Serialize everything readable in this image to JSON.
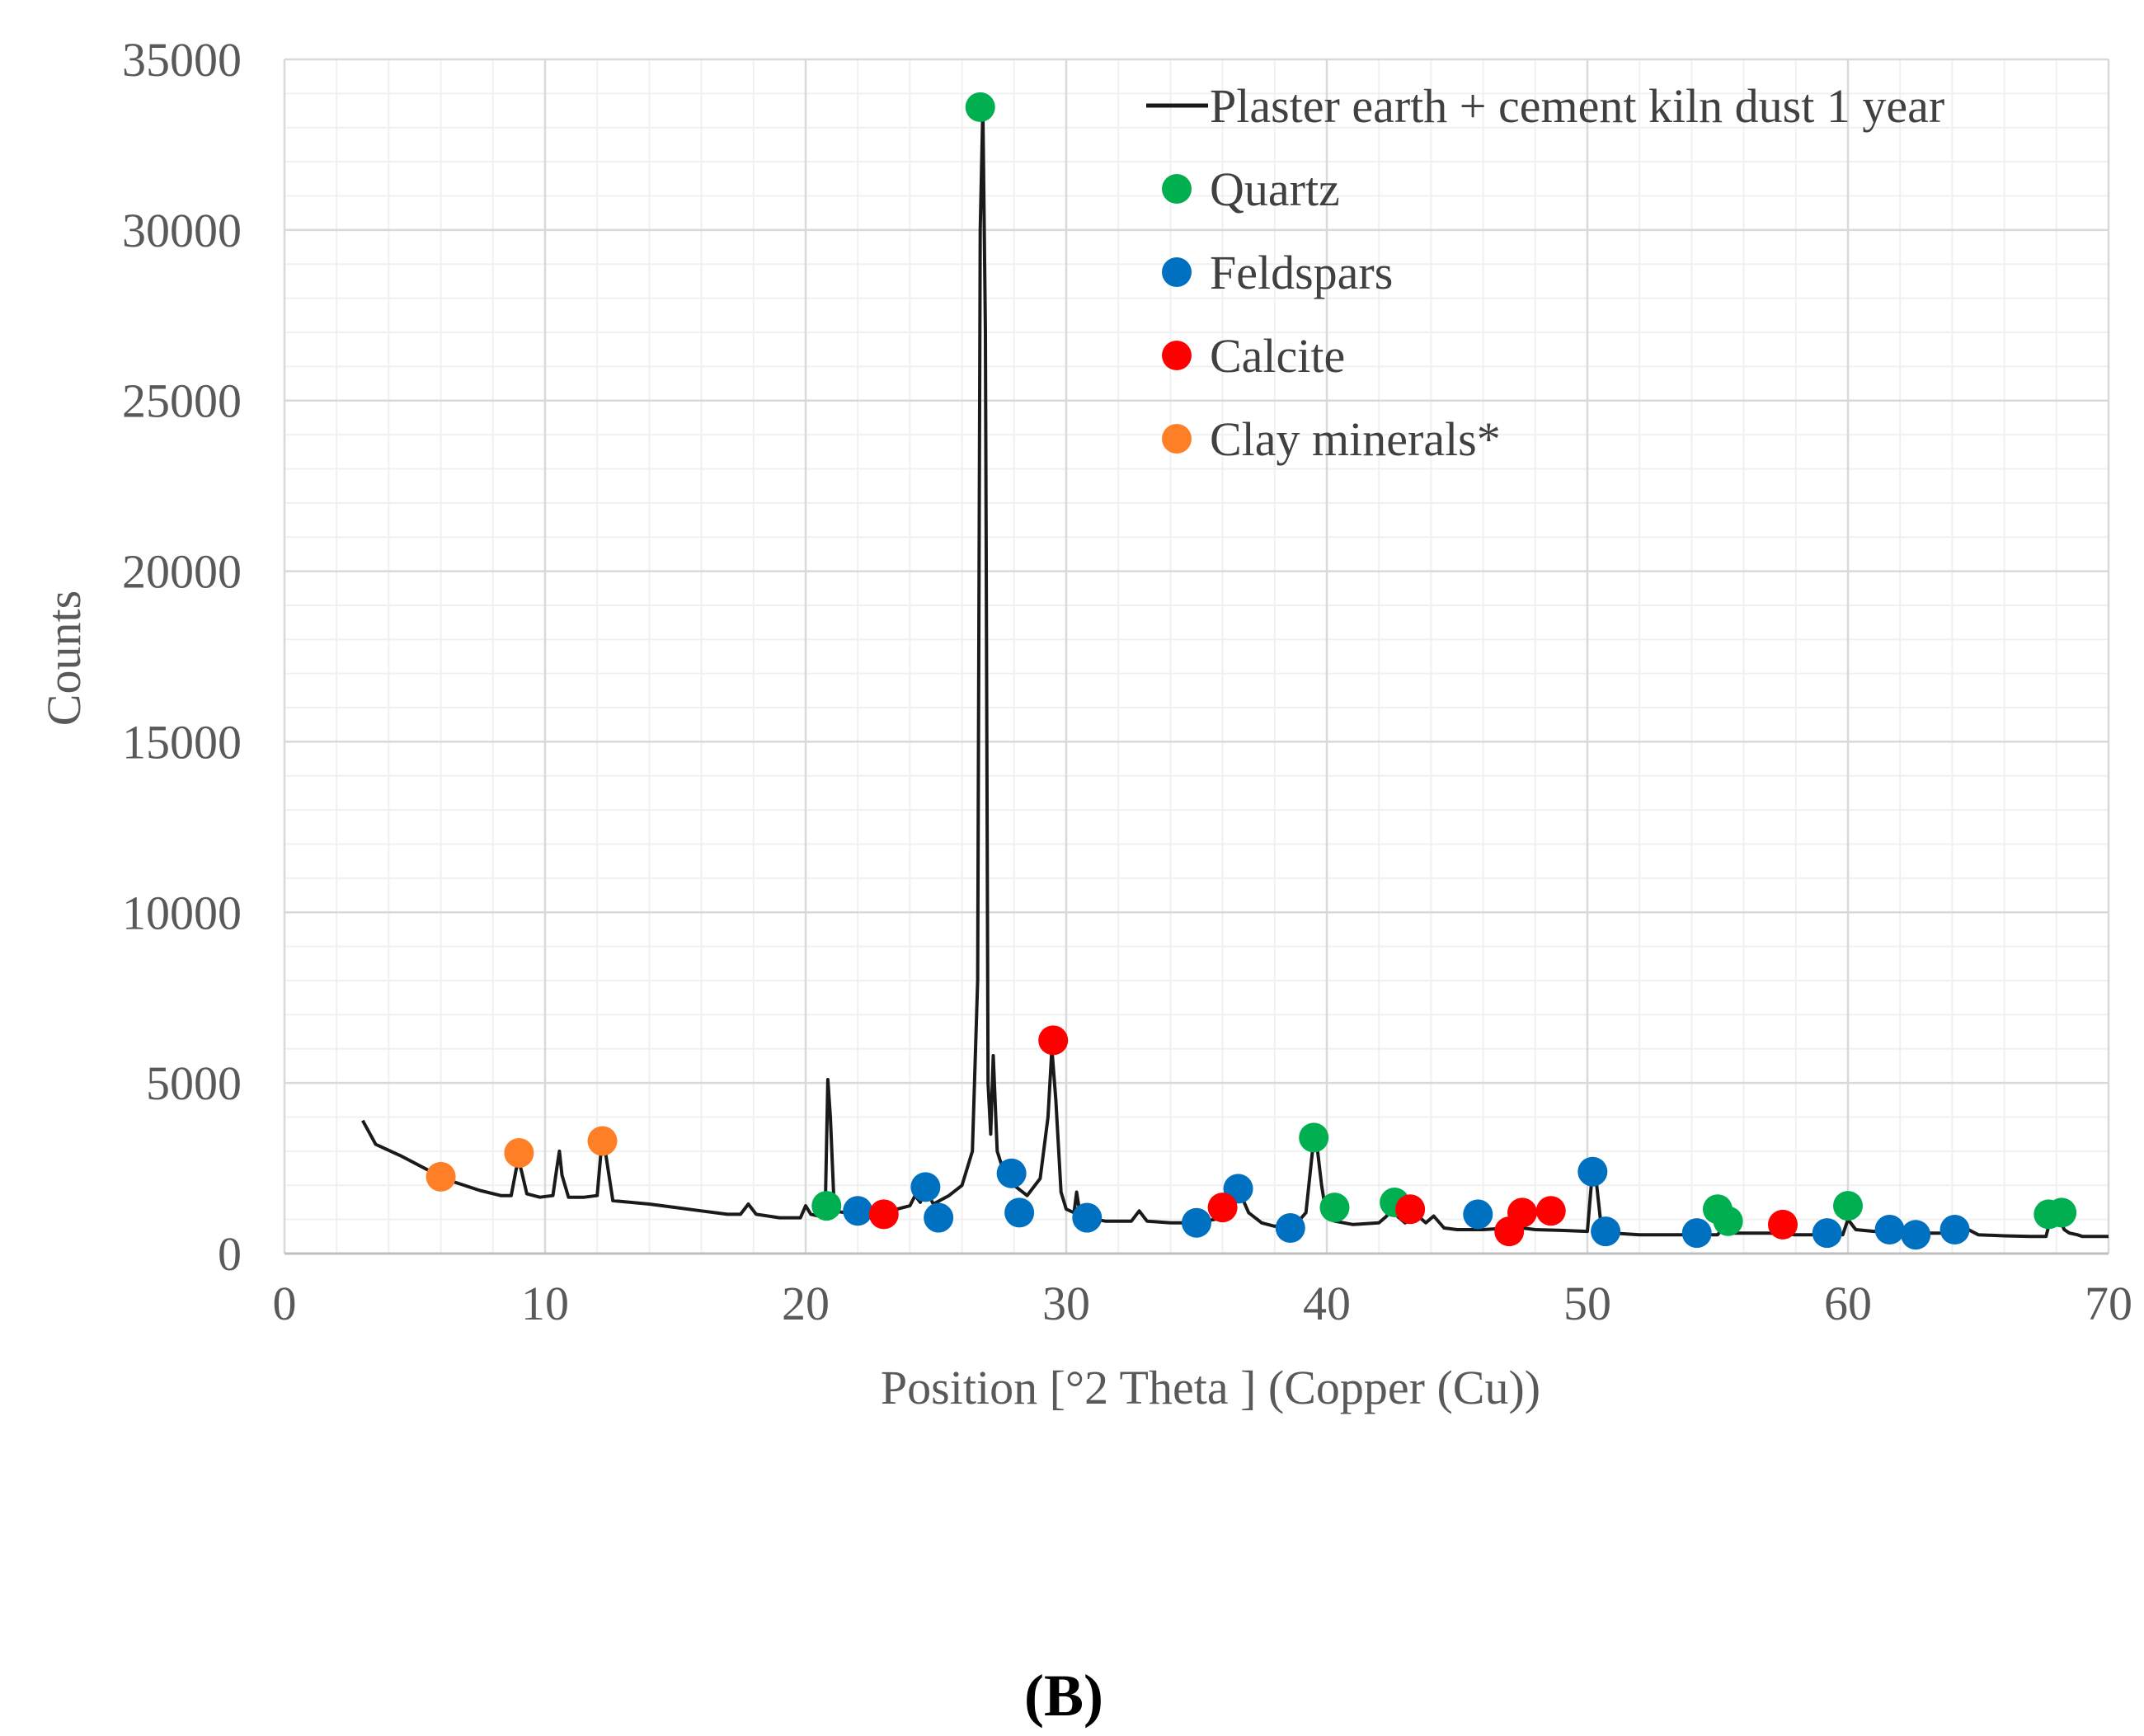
{
  "chart_data": {
    "type": "line",
    "title": "",
    "xlabel": "Position [°2 Theta ] (Copper (Cu))",
    "ylabel": "Counts",
    "xlim": [
      0,
      70
    ],
    "ylim": [
      0,
      35000
    ],
    "x_ticks": [
      0,
      10,
      20,
      30,
      40,
      50,
      60,
      70
    ],
    "x_tick_labels": [
      "0",
      "10",
      "20",
      "30",
      "40",
      "50",
      "60",
      "70"
    ],
    "y_ticks": [
      0,
      5000,
      10000,
      15000,
      20000,
      25000,
      30000,
      35000
    ],
    "y_tick_labels": [
      "0",
      "5000",
      "10000",
      "15000",
      "20000",
      "25000",
      "30000",
      "35000"
    ],
    "grid": true,
    "legend_position": "top-right",
    "caption": "(B)",
    "series": [
      {
        "name": "Plaster earth + cement kiln dust 1 year",
        "kind": "line",
        "color": "#1a1a1a",
        "x": [
          3.0,
          3.5,
          4.5,
          5.5,
          6.5,
          7.5,
          8.3,
          8.7,
          8.9,
          9.0,
          9.1,
          9.3,
          9.8,
          10.3,
          10.45,
          10.55,
          10.65,
          10.9,
          11.5,
          12.0,
          12.15,
          12.25,
          12.35,
          12.6,
          14,
          15,
          16,
          17,
          17.5,
          17.8,
          18.1,
          19,
          19.8,
          20.0,
          20.2,
          20.5,
          20.75,
          20.85,
          20.95,
          21.1,
          21.5,
          22.5,
          23.5,
          24.0,
          24.2,
          24.4,
          24.6,
          24.9,
          25.5,
          26.0,
          26.4,
          26.6,
          26.7,
          26.8,
          26.9,
          27.0,
          27.1,
          27.2,
          27.35,
          27.6,
          28.0,
          28.5,
          29.0,
          29.3,
          29.45,
          29.6,
          29.8,
          30.0,
          30.3,
          30.4,
          30.5,
          30.8,
          31.5,
          32.5,
          32.8,
          33.1,
          34,
          35,
          36,
          36.2,
          36.4,
          36.6,
          37.0,
          37.5,
          38,
          38.8,
          39.2,
          39.45,
          39.6,
          39.8,
          40.0,
          40.3,
          41,
          42,
          42.3,
          42.5,
          42.7,
          43,
          43.5,
          43.8,
          44.1,
          44.5,
          45,
          46,
          47,
          47.5,
          48,
          49,
          50.0,
          50.15,
          50.3,
          50.5,
          51,
          52,
          53,
          54,
          55,
          55.2,
          55.5,
          56,
          57,
          58,
          59,
          59.8,
          60.0,
          60.3,
          61,
          62,
          63,
          64,
          64.5,
          65,
          66,
          67,
          67.6,
          67.8,
          68.0,
          68.3,
          68.5,
          68.8,
          69.0,
          70.0
        ],
        "y": [
          3900,
          3200,
          2850,
          2450,
          2100,
          1850,
          1700,
          1700,
          2500,
          2700,
          2400,
          1750,
          1650,
          1700,
          2500,
          3000,
          2300,
          1650,
          1650,
          1700,
          3000,
          3300,
          2800,
          1550,
          1450,
          1350,
          1250,
          1150,
          1150,
          1450,
          1150,
          1050,
          1050,
          1400,
          1150,
          1100,
          1200,
          5100,
          4000,
          1250,
          1200,
          1200,
          1300,
          1400,
          1700,
          1500,
          1900,
          1450,
          1700,
          2000,
          3000,
          8000,
          30000,
          33600,
          27000,
          5000,
          3500,
          5800,
          3000,
          2400,
          2000,
          1700,
          2200,
          4000,
          6000,
          4500,
          1800,
          1300,
          1200,
          1800,
          1300,
          1050,
          950,
          950,
          1250,
          950,
          900,
          900,
          1050,
          1500,
          1300,
          1900,
          1200,
          900,
          800,
          850,
          1200,
          3000,
          3300,
          2000,
          1050,
          950,
          850,
          900,
          1100,
          1500,
          1100,
          900,
          1100,
          900,
          1100,
          750,
          700,
          700,
          750,
          750,
          700,
          680,
          650,
          2000,
          2400,
          1000,
          600,
          550,
          550,
          550,
          550,
          750,
          600,
          600,
          600,
          550,
          550,
          550,
          1000,
          700,
          650,
          650,
          600,
          600,
          750,
          550,
          520,
          500,
          500,
          1100,
          1200,
          700,
          600,
          550,
          500,
          500
        ]
      },
      {
        "name": "Quartz",
        "kind": "markers",
        "color": "#00b050",
        "x": [
          20.8,
          26.7,
          39.5,
          40.3,
          42.6,
          55.0,
          55.4,
          60.0,
          67.7,
          68.2
        ],
        "y": [
          1400,
          33600,
          3400,
          1350,
          1500,
          1300,
          950,
          1400,
          1150,
          1200
        ]
      },
      {
        "name": "Feldspars",
        "kind": "markers",
        "color": "#0070c0",
        "x": [
          22.0,
          24.6,
          25.1,
          27.9,
          28.2,
          30.8,
          35.0,
          36.6,
          38.6,
          45.8,
          50.2,
          50.7,
          54.2,
          59.2,
          61.6,
          62.6,
          64.1
        ],
        "y": [
          1250,
          1950,
          1050,
          2350,
          1200,
          1050,
          900,
          1900,
          750,
          1150,
          2400,
          650,
          600,
          600,
          700,
          550,
          700
        ]
      },
      {
        "name": "Calcite",
        "kind": "markers",
        "color": "#ff0000",
        "x": [
          23.0,
          29.5,
          36.0,
          43.2,
          47.0,
          47.5,
          48.6,
          57.5
        ],
        "y": [
          1150,
          6250,
          1350,
          1300,
          650,
          1200,
          1250,
          850
        ]
      },
      {
        "name": "Clay minerals*",
        "kind": "markers",
        "color": "#ff7f27",
        "x": [
          6.0,
          9.0,
          12.2
        ],
        "y": [
          2250,
          2950,
          3300
        ]
      }
    ]
  }
}
